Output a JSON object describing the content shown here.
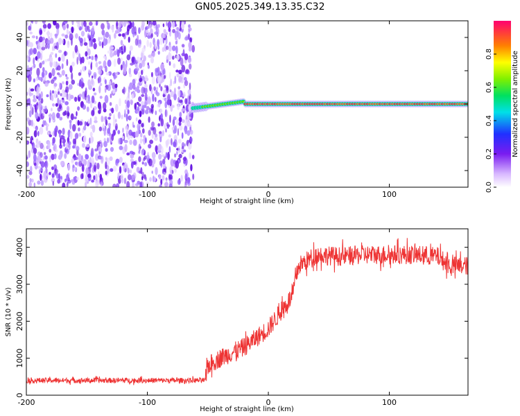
{
  "title": "GN05.2025.349.13.35.C32",
  "chart_data": [
    {
      "type": "heatmap",
      "name": "spectrogram",
      "xlabel": "Height of straight line (km)",
      "ylabel": "Frequency (Hz)",
      "xlim": [
        -200,
        165
      ],
      "ylim": [
        -50,
        50
      ],
      "x_ticks": [
        -200,
        -100,
        0,
        100
      ],
      "y_ticks": [
        -40,
        -20,
        0,
        20,
        40
      ],
      "noise_region_x": [
        -200,
        -62
      ],
      "signal_line": {
        "x_start": -62,
        "x_end": 165,
        "freq_start": -4,
        "freq_end": 0
      },
      "colorbar": {
        "label": "Normalized spectral amplitude",
        "range": [
          0,
          1
        ],
        "ticks": [
          "0.0",
          "0.2",
          "0.4",
          "0.6",
          "0.8"
        ],
        "ticks_values": [
          0.0,
          0.2,
          0.4,
          0.6,
          0.8
        ]
      }
    },
    {
      "type": "line",
      "name": "snr",
      "xlabel": "Height of straight line (km)",
      "ylabel": "SNR (10 * v/v)",
      "xlim": [
        -200,
        165
      ],
      "ylim": [
        0,
        4500
      ],
      "x_ticks": [
        -200,
        -100,
        0,
        100
      ],
      "y_ticks": [
        0,
        1000,
        2000,
        3000,
        4000
      ],
      "color": "#ee3333",
      "series": [
        {
          "name": "SNR",
          "x": [
            -200,
            -150,
            -100,
            -52,
            -50,
            -40,
            -20,
            0,
            20,
            25,
            40,
            60,
            80,
            100,
            120,
            140,
            150,
            165
          ],
          "values": [
            400,
            400,
            400,
            400,
            800,
            1000,
            1300,
            1800,
            2700,
            3500,
            3800,
            3750,
            3800,
            3800,
            3800,
            3750,
            3500,
            3500
          ]
        }
      ]
    }
  ]
}
